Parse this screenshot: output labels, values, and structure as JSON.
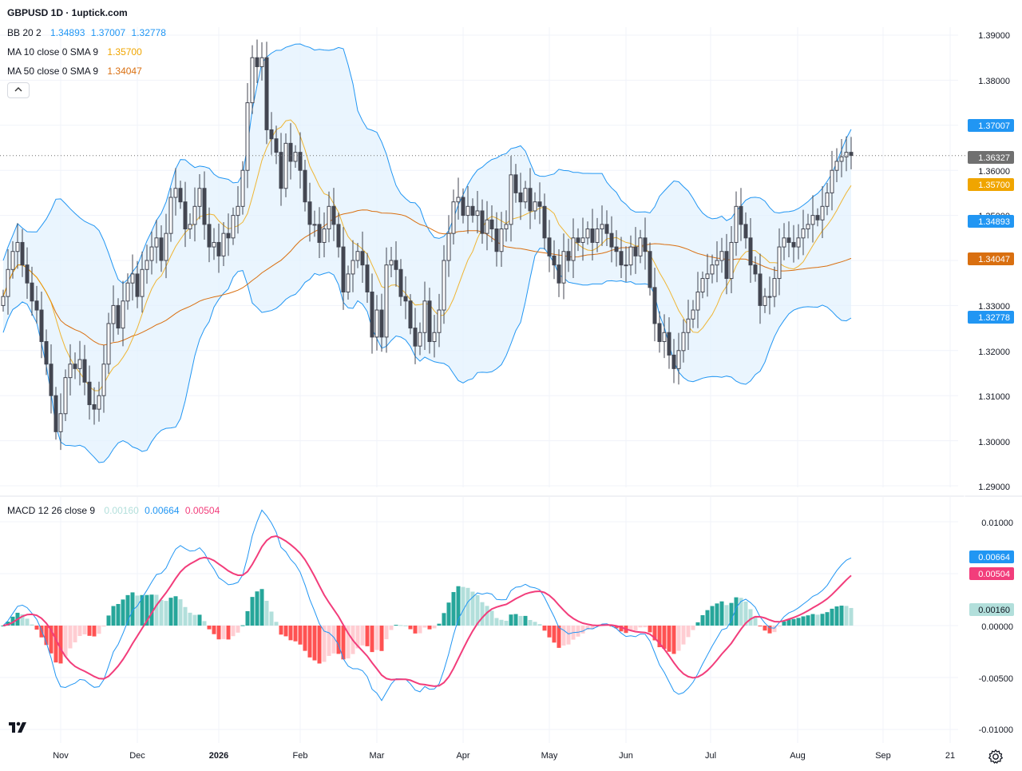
{
  "header": {
    "title": "GBPUSD 1D · 1uptick.com"
  },
  "legends": {
    "bb": {
      "label": "BB 20 2",
      "values": [
        "1.34893",
        "1.37007",
        "1.32778"
      ]
    },
    "ma10": {
      "label": "MA 10 close 0 SMA 9",
      "value": "1.35700"
    },
    "ma50": {
      "label": "MA 50 close 0 SMA 9",
      "value": "1.34047"
    },
    "macd": {
      "label": "MACD 12 26 close 9",
      "values": [
        "0.00160",
        "0.00664",
        "0.00504"
      ]
    }
  },
  "colors": {
    "bb_band": "#2196f3",
    "bb_fill": "#e3f2fd",
    "ma10": "#f0a500",
    "ma50": "#d96f10",
    "macd_line": "#2196f3",
    "signal_line": "#f23d7b",
    "hist_pos_strong": "#26a69a",
    "hist_pos_weak": "#b2dfdb",
    "hist_neg_strong": "#ff5252",
    "hist_neg_weak": "#ffcdd2",
    "candle": "#434651",
    "price_tag": "#707070"
  },
  "icons": {
    "settings": "gear-icon",
    "collapse": "chevron-up-icon",
    "brand": "tradingview-logo-icon"
  },
  "chart_data": [
    {
      "type": "candlestick",
      "title": "GBPUSD 1D · 1uptick.com",
      "ylim": [
        1.285,
        1.395
      ],
      "y_ticks": [
        "1.39000",
        "1.38000",
        "1.36000",
        "1.35000",
        "1.33000",
        "1.32000",
        "1.31000",
        "1.30000",
        "1.29000"
      ],
      "x_ticks": [
        "Nov",
        "Dec",
        "2026",
        "Feb",
        "Mar",
        "Apr",
        "May",
        "Jun",
        "Jul",
        "Aug",
        "Sep",
        "21"
      ],
      "last_price": "1.36327",
      "price_tags": {
        "bb_upper": "1.37007",
        "last": "1.36327",
        "ma10": "1.35700",
        "bb_basis": "1.34893",
        "ma50": "1.34047",
        "bb_lower": "1.32778"
      },
      "series": [
        {
          "name": "Close",
          "values": [
            1.332,
            1.338,
            1.342,
            1.344,
            1.339,
            1.335,
            1.331,
            1.329,
            1.322,
            1.317,
            1.31,
            1.302,
            1.306,
            1.314,
            1.317,
            1.316,
            1.318,
            1.313,
            1.308,
            1.307,
            1.31,
            1.317,
            1.326,
            1.33,
            1.325,
            1.331,
            1.335,
            1.337,
            1.332,
            1.338,
            1.34,
            1.343,
            1.345,
            1.34,
            1.346,
            1.354,
            1.356,
            1.353,
            1.347,
            1.348,
            1.352,
            1.356,
            1.348,
            1.343,
            1.344,
            1.341,
            1.346,
            1.345,
            1.35,
            1.352,
            1.36,
            1.375,
            1.385,
            1.383,
            1.385,
            1.369,
            1.367,
            1.364,
            1.356,
            1.366,
            1.362,
            1.364,
            1.36,
            1.353,
            1.348,
            1.348,
            1.344,
            1.347,
            1.352,
            1.348,
            1.343,
            1.333,
            1.337,
            1.34,
            1.342,
            1.339,
            1.333,
            1.323,
            1.329,
            1.323,
            1.339,
            1.34,
            1.338,
            1.332,
            1.331,
            1.325,
            1.321,
            1.324,
            1.331,
            1.322,
            1.324,
            1.329,
            1.34,
            1.346,
            1.353,
            1.354,
            1.35,
            1.352,
            1.35,
            1.351,
            1.346,
            1.349,
            1.347,
            1.342,
            1.347,
            1.348,
            1.359,
            1.355,
            1.353,
            1.356,
            1.351,
            1.353,
            1.352,
            1.345,
            1.341,
            1.339,
            1.335,
            1.342,
            1.34,
            1.345,
            1.344,
            1.345,
            1.347,
            1.344,
            1.347,
            1.348,
            1.346,
            1.343,
            1.342,
            1.339,
            1.339,
            1.343,
            1.341,
            1.345,
            1.342,
            1.334,
            1.326,
            1.322,
            1.324,
            1.319,
            1.316,
            1.32,
            1.324,
            1.327,
            1.329,
            1.333,
            1.336,
            1.337,
            1.339,
            1.34,
            1.342,
            1.336,
            1.344,
            1.352,
            1.348,
            1.345,
            1.339,
            1.337,
            1.33,
            1.332,
            1.332,
            1.336,
            1.343,
            1.345,
            1.344,
            1.343,
            1.345,
            1.347,
            1.348,
            1.35,
            1.349,
            1.352,
            1.355,
            1.36,
            1.362,
            1.363,
            1.364,
            1.3633
          ]
        }
      ]
    },
    {
      "type": "line",
      "title": "MACD 12 26 close 9",
      "ylim": [
        -0.0105,
        0.0107
      ],
      "y_ticks": [
        "0.01000",
        "0.00000",
        "-0.00500",
        "-0.01000"
      ],
      "series": [
        {
          "name": "Histogram",
          "value": "0.00160"
        },
        {
          "name": "MACD",
          "value": "0.00664"
        },
        {
          "name": "Signal",
          "value": "0.00504"
        }
      ]
    }
  ]
}
